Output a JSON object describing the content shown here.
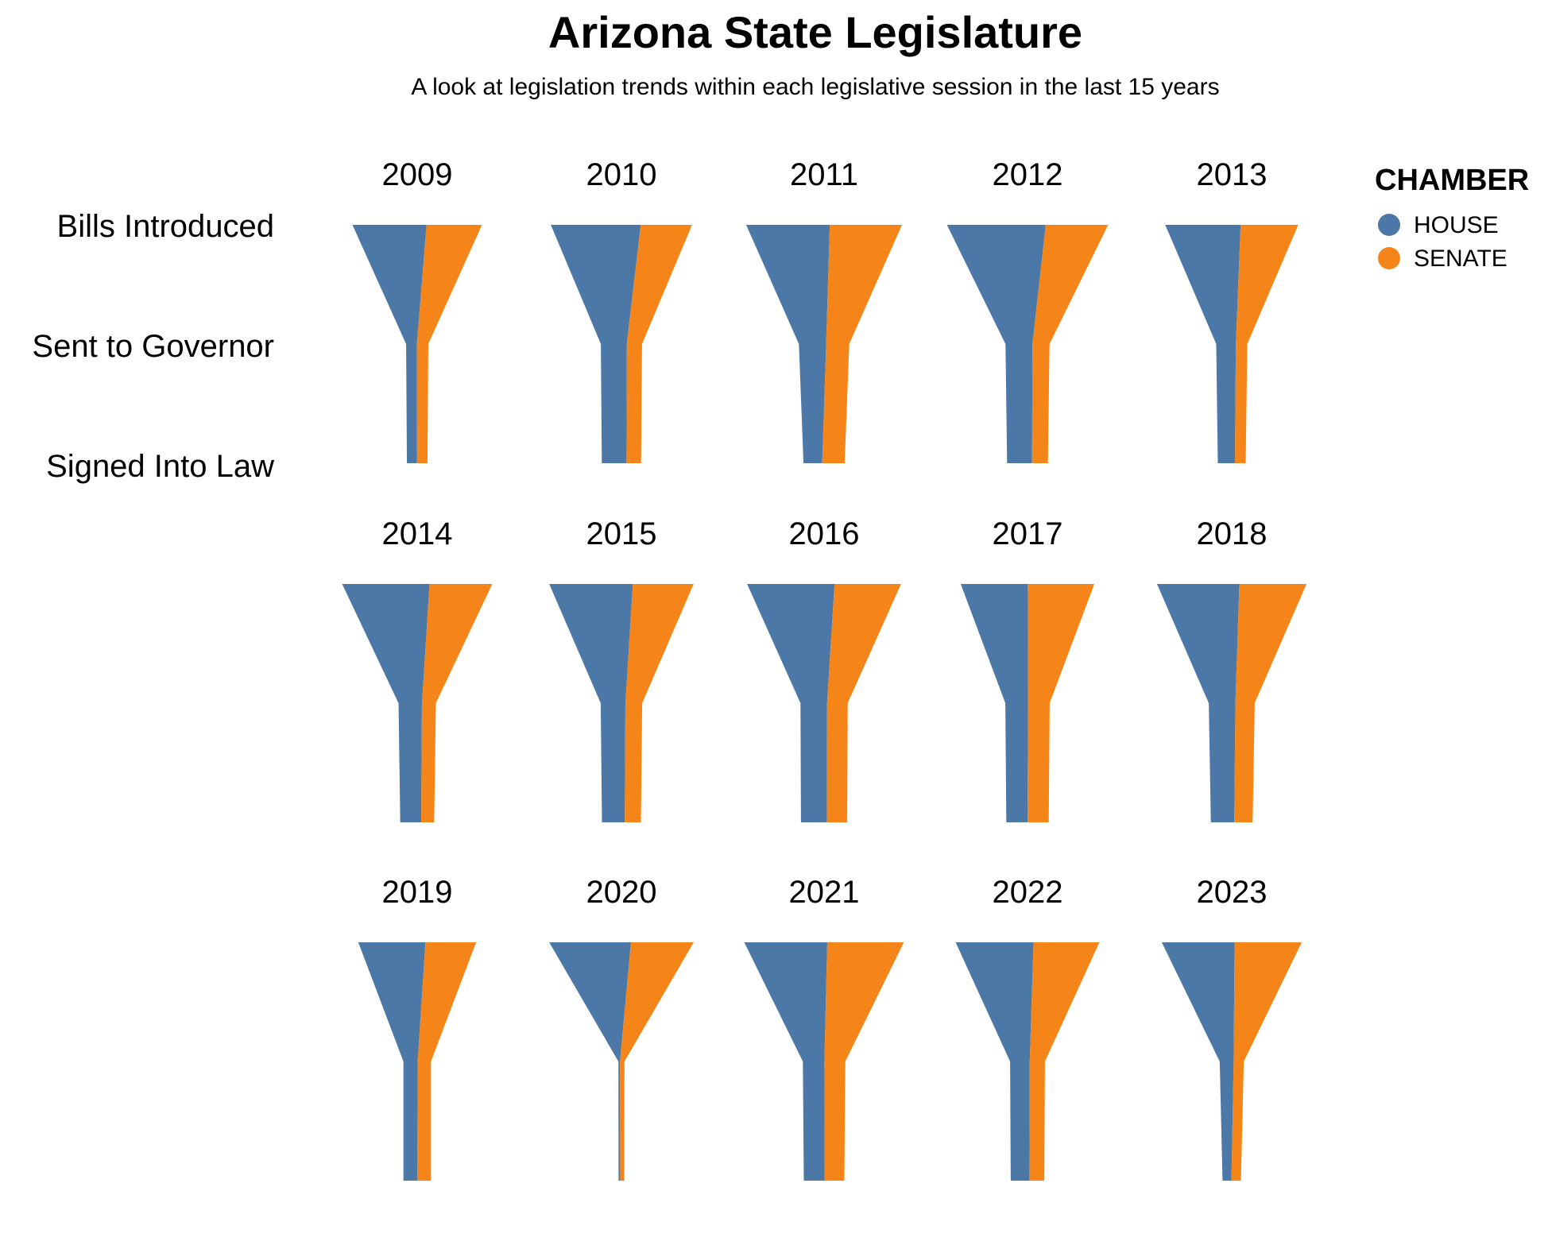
{
  "chart_data": {
    "type": "funnel",
    "title": "Arizona State Legislature",
    "subtitle": "A look at legislation trends within each legislative session in the last 15 years",
    "stages": [
      "Bills Introduced",
      "Sent to Governor",
      "Signed Into Law"
    ],
    "legend": {
      "title": "CHAMBER",
      "placement": "top-right",
      "entries": [
        {
          "name": "HOUSE",
          "color": "#4c78a8"
        },
        {
          "name": "SENATE",
          "color": "#f58518"
        }
      ]
    },
    "series": [
      {
        "name": "HOUSE",
        "color": "#4c78a8"
      },
      {
        "name": "SENATE",
        "color": "#f58518"
      }
    ],
    "panels": [
      {
        "year": "2009",
        "house": [
          1170,
          170,
          160
        ],
        "senate": [
          875,
          180,
          165
        ]
      },
      {
        "year": "2010",
        "house": [
          1420,
          410,
          390
        ],
        "senate": [
          810,
          240,
          230
        ]
      },
      {
        "year": "2011",
        "house": [
          1320,
          430,
          295
        ],
        "senate": [
          1140,
          365,
          355
        ]
      },
      {
        "year": "2012",
        "house": [
          1560,
          425,
          395
        ],
        "senate": [
          985,
          270,
          250
        ]
      },
      {
        "year": "2013",
        "house": [
          1190,
          310,
          270
        ],
        "senate": [
          910,
          180,
          170
        ]
      },
      {
        "year": "2014",
        "house": [
          1380,
          370,
          330
        ],
        "senate": [
          990,
          220,
          205
        ]
      },
      {
        "year": "2015",
        "house": [
          1320,
          390,
          360
        ],
        "senate": [
          960,
          265,
          255
        ]
      },
      {
        "year": "2016",
        "house": [
          1380,
          420,
          410
        ],
        "senate": [
          1050,
          325,
          320
        ]
      },
      {
        "year": "2017",
        "house": [
          1060,
          360,
          335
        ],
        "senate": [
          1050,
          340,
          335
        ]
      },
      {
        "year": "2018",
        "house": [
          1300,
          420,
          370
        ],
        "senate": [
          1060,
          305,
          290
        ]
      },
      {
        "year": "2019",
        "house": [
          1060,
          225,
          220
        ],
        "senate": [
          800,
          210,
          215
        ]
      },
      {
        "year": "2020",
        "house": [
          1290,
          25,
          25
        ],
        "senate": [
          990,
          70,
          65
        ]
      },
      {
        "year": "2021",
        "house": [
          1310,
          340,
          330
        ],
        "senate": [
          1210,
          330,
          310
        ]
      },
      {
        "year": "2022",
        "house": [
          1230,
          310,
          295
        ],
        "senate": [
          1040,
          240,
          235
        ]
      },
      {
        "year": "2023",
        "house": [
          1150,
          220,
          140
        ],
        "senate": [
          1060,
          160,
          150
        ]
      }
    ]
  }
}
